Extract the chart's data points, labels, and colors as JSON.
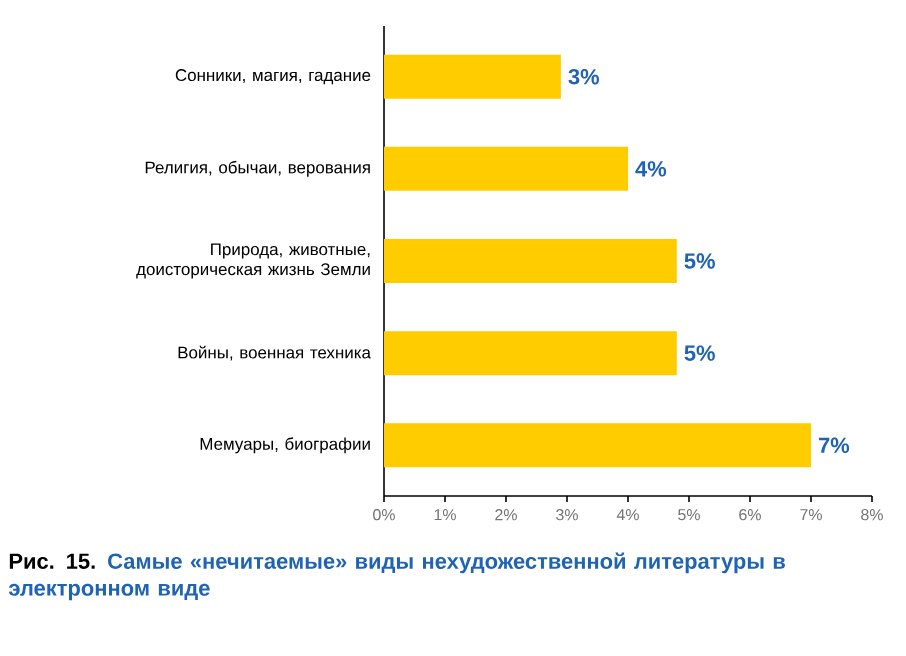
{
  "chart_data": {
    "type": "bar",
    "orientation": "horizontal",
    "title": "Рис. 15.",
    "subtitle": "Самые «нечитаемые» виды нехудожественной литературы в электронном виде",
    "categories": [
      "Сонники, магия, гадание",
      "Религия, обычаи, верования",
      "Природа, животные, доисторическая жизнь Земли",
      "Войны, военная техника",
      "Мемуары, биографии"
    ],
    "values": [
      2.9,
      4.0,
      4.8,
      4.8,
      7.0
    ],
    "value_labels": [
      "3%",
      "4%",
      "5%",
      "5%",
      "7%"
    ],
    "color": "#ffcc00",
    "xlim": [
      0,
      8
    ],
    "xticks": [
      {
        "value": 0,
        "label": "0%"
      },
      {
        "value": 1,
        "label": "1%"
      },
      {
        "value": 2,
        "label": "2%"
      },
      {
        "value": 3,
        "label": "3%"
      },
      {
        "value": 4,
        "label": "4%"
      },
      {
        "value": 5,
        "label": "5%"
      },
      {
        "value": 6,
        "label": "6%"
      },
      {
        "value": 7,
        "label": "7%"
      },
      {
        "value": 8,
        "label": "8%"
      }
    ],
    "grid": false
  }
}
